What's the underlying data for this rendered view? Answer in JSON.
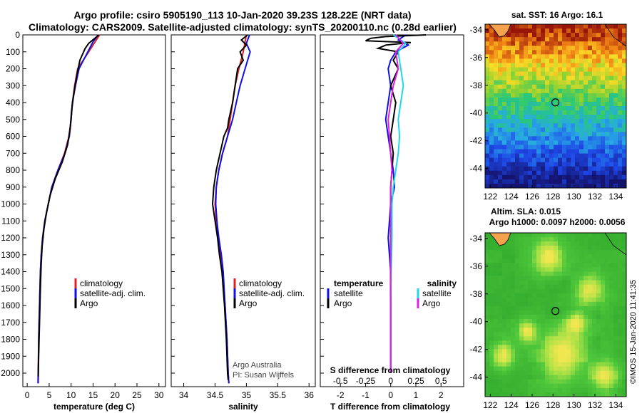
{
  "header": {
    "title_line1": "Argo profile: csiro 5905190_113 10-Jan-2020 39.23S 128.22E (NRT data)",
    "title_line2": "Climatology: CARS2009. Satellite-adjusted climatology: synTS_20200110.nc (0.28d earlier)"
  },
  "colors": {
    "climatology": "#e02020",
    "satellite": "#1010e0",
    "argo": "#000000",
    "sal_satellite": "#20d8e8",
    "sal_argo": "#e020e0"
  },
  "chart_data": [
    {
      "type": "line",
      "xlabel": "temperature (deg C)",
      "ylabel": "",
      "xlim": [
        -1,
        31.5
      ],
      "ylim": [
        2080,
        0
      ],
      "xticks": [
        0,
        5,
        10,
        15,
        20,
        25,
        30
      ],
      "yticks": [
        0,
        100,
        200,
        300,
        400,
        500,
        600,
        700,
        800,
        900,
        1000,
        1100,
        1200,
        1300,
        1400,
        1500,
        1600,
        1700,
        1800,
        1900,
        2000
      ],
      "ytick_labels": [
        "0",
        "100",
        "200",
        "300",
        "400",
        "500",
        "600",
        "700",
        "800",
        "900",
        "1000",
        "1100",
        "1200",
        "1300",
        "1400",
        "1500",
        "1600",
        "1700",
        "1800",
        "1900",
        "2000"
      ],
      "legend": {
        "position": "lower-right",
        "entries": [
          "climatology",
          "satellite-adj. clim.",
          "Argo"
        ]
      },
      "series": [
        {
          "name": "climatology",
          "color": "#e02020",
          "y": [
            0,
            40,
            100,
            200,
            300,
            400,
            500,
            600,
            700,
            800,
            900,
            1000,
            1100,
            1200,
            1300,
            1400,
            1600,
            1800,
            2000,
            2060
          ],
          "x": [
            16.5,
            15.5,
            14.0,
            11.5,
            10.8,
            10.3,
            10.0,
            9.5,
            8.5,
            7.0,
            5.6,
            4.8,
            4.0,
            3.5,
            3.2,
            3.0,
            2.8,
            2.6,
            2.5,
            2.45
          ]
        },
        {
          "name": "satellite-adj. clim.",
          "color": "#1010e0",
          "y": [
            0,
            40,
            100,
            200,
            300,
            400,
            500,
            600,
            700,
            800,
            900,
            1000,
            1100,
            1200,
            1300,
            1400,
            1600,
            1800,
            2000,
            2060
          ],
          "x": [
            16.2,
            15.0,
            13.8,
            11.8,
            11.0,
            10.3,
            10.0,
            9.6,
            8.6,
            7.0,
            5.6,
            4.8,
            4.0,
            3.5,
            3.2,
            3.0,
            2.8,
            2.6,
            2.55,
            2.5
          ]
        },
        {
          "name": "Argo",
          "color": "#000000",
          "y": [
            0,
            20,
            50,
            80,
            150,
            250,
            350,
            450,
            550,
            650,
            750,
            850,
            950,
            1050,
            1150,
            1250,
            1350,
            1500,
            1700,
            1900,
            2020
          ],
          "x": [
            16.3,
            15.4,
            14.0,
            13.2,
            12.0,
            11.2,
            10.6,
            10.1,
            9.8,
            9.2,
            8.0,
            6.4,
            5.2,
            4.4,
            3.8,
            3.4,
            3.2,
            3.0,
            2.8,
            2.6,
            2.5
          ]
        }
      ]
    },
    {
      "type": "line",
      "xlabel": "salinity",
      "ylabel": "",
      "xlim": [
        33.8,
        36.1
      ],
      "ylim": [
        2080,
        0
      ],
      "xticks": [
        34,
        34.5,
        35,
        35.5,
        36
      ],
      "xtick_labels": [
        "34",
        "34.5",
        "35",
        "35.5",
        "36"
      ],
      "legend": {
        "position": "lower-right",
        "entries": [
          "climatology",
          "satellite-adj. clim.",
          "Argo"
        ]
      },
      "annotations": [
        "Argo Australia",
        "PI: Susan Wijffels"
      ],
      "series": [
        {
          "name": "climatology",
          "color": "#e02020",
          "y": [
            0,
            100,
            200,
            300,
            400,
            500,
            600,
            700,
            800,
            900,
            1000,
            1100,
            1200,
            1300,
            1400,
            1500,
            1600,
            1800,
            2000,
            2060
          ],
          "x": [
            35.0,
            34.95,
            34.88,
            34.82,
            34.78,
            34.74,
            34.7,
            34.62,
            34.56,
            34.52,
            34.5,
            34.52,
            34.56,
            34.58,
            34.62,
            34.64,
            34.66,
            34.69,
            34.71,
            34.72
          ]
        },
        {
          "name": "satellite-adj. clim.",
          "color": "#1010e0",
          "y": [
            0,
            50,
            100,
            200,
            300,
            400,
            500,
            600,
            700,
            800,
            900,
            1000,
            1100,
            1200,
            1300,
            1400,
            1600,
            1800,
            2000,
            2060
          ],
          "x": [
            35.05,
            35.0,
            35.06,
            34.98,
            34.9,
            34.84,
            34.78,
            34.7,
            34.62,
            34.56,
            34.52,
            34.51,
            34.53,
            34.56,
            34.6,
            34.63,
            34.66,
            34.69,
            34.71,
            34.72
          ]
        },
        {
          "name": "Argo",
          "color": "#000000",
          "y": [
            0,
            30,
            60,
            100,
            150,
            200,
            300,
            400,
            500,
            550,
            600,
            700,
            800,
            900,
            1000,
            1100,
            1200,
            1300,
            1400,
            1500,
            1600,
            1800,
            2000,
            2040
          ],
          "x": [
            35.02,
            34.92,
            35.0,
            34.9,
            34.95,
            34.86,
            34.82,
            34.78,
            34.72,
            34.7,
            34.64,
            34.58,
            34.52,
            34.48,
            34.46,
            34.5,
            34.54,
            34.57,
            34.61,
            34.63,
            34.65,
            34.68,
            34.7,
            34.71
          ]
        }
      ]
    },
    {
      "type": "line",
      "xlabel": "T difference from climatology",
      "ylabel": "",
      "xlim": [
        -2.8,
        2.9
      ],
      "ylim": [
        2080,
        0
      ],
      "xticks": [
        -2,
        -1,
        0,
        1,
        2
      ],
      "secondary_xlabel": "S difference from climatology",
      "secondary_xtick_labels": [
        "-0.5",
        "-0.25",
        "0",
        "0.25",
        "0.5"
      ],
      "legend": {
        "position": "lower",
        "groups": [
          {
            "title": "temperature",
            "entries": [
              "satellite",
              "Argo"
            ]
          },
          {
            "title": "salinity",
            "entries": [
              "satellite",
              "Argo"
            ]
          }
        ]
      },
      "series": [
        {
          "name": "satellite",
          "group": "temperature",
          "color": "#1010e0",
          "y": [
            0,
            30,
            60,
            100,
            150,
            200,
            300,
            400,
            500,
            600,
            700,
            800,
            900,
            1000,
            1200,
            1400,
            1600,
            1800,
            2000
          ],
          "x": [
            0.6,
            0.3,
            0.7,
            0.2,
            0.0,
            -0.1,
            0.0,
            -0.1,
            -0.2,
            -0.1,
            0.0,
            0.1,
            0.15,
            0.0,
            -0.1,
            0.0,
            0.0,
            0.0,
            0.0
          ]
        },
        {
          "name": "Argo",
          "group": "temperature",
          "color": "#000000",
          "y": [
            0,
            10,
            20,
            35,
            45,
            60,
            80,
            100,
            150,
            200,
            300,
            400,
            500,
            600,
            700,
            800,
            900,
            1000,
            1200,
            1400,
            1600,
            2000
          ],
          "x": [
            1.4,
            -0.2,
            -0.8,
            -1.0,
            0.8,
            -0.2,
            -0.5,
            0.3,
            0.1,
            0.3,
            0.0,
            0.2,
            0.1,
            0.0,
            0.1,
            0.05,
            0.0,
            0.0,
            0.0,
            0.0,
            0.0,
            0.0
          ]
        },
        {
          "name": "satellite",
          "group": "salinity",
          "color": "#20d8e8",
          "y": [
            0,
            50,
            100,
            200,
            300,
            400,
            500,
            600,
            700,
            800,
            900,
            1000,
            1200,
            1400,
            1600,
            2000
          ],
          "x": [
            0.1,
            0.6,
            0.3,
            0.4,
            0.5,
            0.4,
            0.3,
            0.35,
            0.3,
            0.2,
            0.1,
            0.05,
            0.05,
            0.02,
            0.0,
            0.0
          ]
        },
        {
          "name": "Argo",
          "group": "salinity",
          "color": "#e020e0",
          "y": [
            0,
            50,
            100,
            200,
            300,
            400,
            500,
            600,
            700,
            800,
            900,
            1000,
            1200,
            1400,
            1600,
            2000
          ],
          "x": [
            0.2,
            0.5,
            0.2,
            0.3,
            0.1,
            0.0,
            -0.1,
            -0.05,
            0.0,
            0.05,
            0.0,
            0.0,
            0.0,
            0.0,
            0.0,
            0.0
          ]
        }
      ]
    },
    {
      "type": "heatmap",
      "title": "sat. SST: 16 Argo: 16.1",
      "xlim": [
        121.5,
        135
      ],
      "ylim": [
        -45.4,
        -33.6
      ],
      "xticks": [
        122,
        124,
        126,
        128,
        130,
        132,
        134
      ],
      "yticks": [
        -34,
        -36,
        -38,
        -40,
        -42,
        -44
      ],
      "marker": {
        "lon": 128.22,
        "lat": -39.23
      }
    },
    {
      "type": "heatmap",
      "title": "Altim. SLA: 0.015",
      "subtitle": "Argo h1000: 0.0097 h2000: 0.0056",
      "xlim": [
        121.5,
        135
      ],
      "ylim": [
        -45.4,
        -33.6
      ],
      "xticks": [
        122,
        124,
        126,
        128,
        130,
        132,
        134
      ],
      "yticks": [
        -34,
        -36,
        -38,
        -40,
        -42,
        -44
      ],
      "marker": {
        "lon": 128.22,
        "lat": -39.23
      }
    }
  ],
  "credit": "©IMOS 15-Jan-2020 11:41:35"
}
